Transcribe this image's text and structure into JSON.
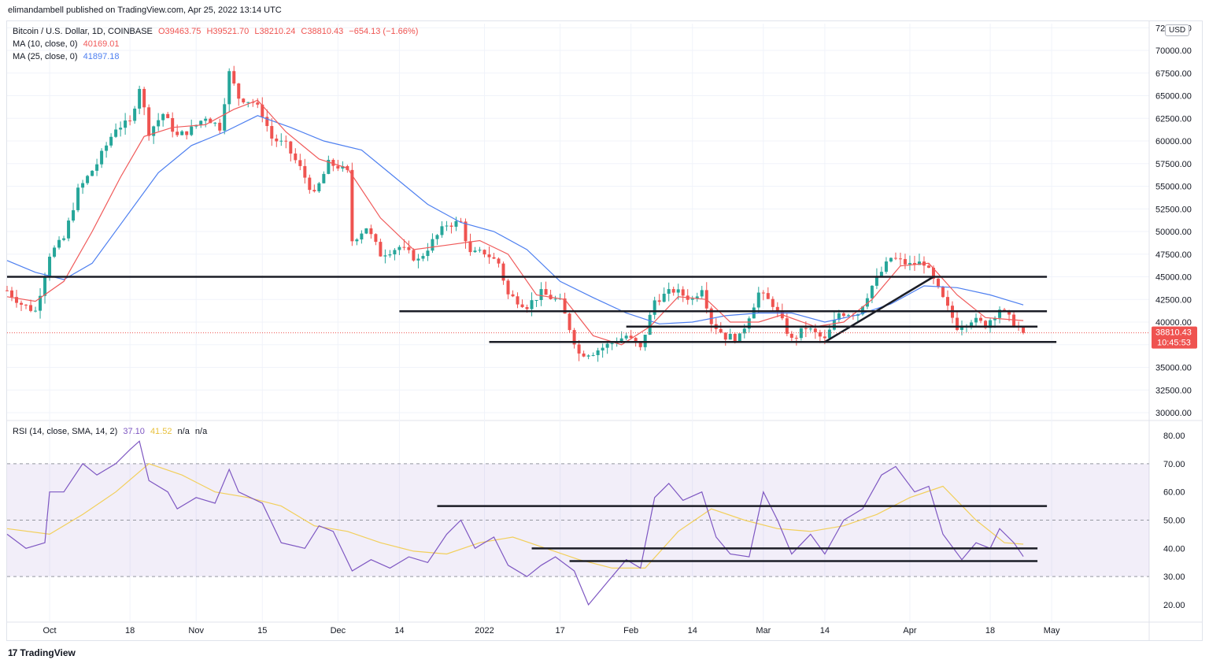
{
  "header": {
    "caption": "elimandambell published on TradingView.com, Apr 25, 2022 13:14 UTC"
  },
  "legend": {
    "symbol": "Bitcoin / U.S. Dollar, 1D, COINBASE",
    "o": "O39463.75",
    "h": "H39521.70",
    "l": "L38210.24",
    "c": "C38810.43",
    "chg": "−654.13 (−1.66%)",
    "ma10_label": "MA (10, close, 0)",
    "ma10_value": "40169.01",
    "ma25_label": "MA (25, close, 0)",
    "ma25_value": "41897.18",
    "rsi_label": "RSI (14, close, SMA, 14, 2)",
    "rsi_value": "37.10",
    "rsi_ma_value": "41.52",
    "na1": "n/a",
    "na2": "n/a"
  },
  "currency_badge": "USD",
  "price_tag": {
    "price": "38810.43",
    "countdown": "10:45:53"
  },
  "footer": {
    "brand": "TradingView"
  },
  "colors": {
    "up": "#26a69a",
    "down": "#ef5350",
    "ma10": "#f05a5a",
    "ma25": "#4d7ff0",
    "rsi": "#7e57c2",
    "rsi_ma": "#f2cf5b",
    "level": "#1b1d26"
  },
  "chart_data": [
    {
      "type": "candlestick",
      "title": "Bitcoin / U.S. Dollar, 1D, COINBASE",
      "ylim": [
        29000,
        72500
      ],
      "y_ticks": [
        "30000.00",
        "32500.00",
        "35000.00",
        "37500.00",
        "40000.00",
        "42500.00",
        "45000.00",
        "47500.00",
        "50000.00",
        "52500.00",
        "55000.00",
        "57500.00",
        "60000.00",
        "62500.00",
        "65000.00",
        "67500.00",
        "70000.00",
        "72500.00"
      ],
      "x_ticks": [
        "Oct",
        "18",
        "Nov",
        "15",
        "Dec",
        "14",
        "2022",
        "17",
        "Feb",
        "14",
        "Mar",
        "14",
        "Apr",
        "18",
        "May"
      ],
      "close_path": [
        [
          "2021-09-22",
          43500
        ],
        [
          "2021-09-25",
          42000
        ],
        [
          "2021-09-28",
          41200
        ],
        [
          "2021-10-01",
          47500
        ],
        [
          "2021-10-04",
          49200
        ],
        [
          "2021-10-07",
          54500
        ],
        [
          "2021-10-11",
          57500
        ],
        [
          "2021-10-15",
          61500
        ],
        [
          "2021-10-18",
          62000
        ],
        [
          "2021-10-20",
          66000
        ],
        [
          "2021-10-22",
          61000
        ],
        [
          "2021-10-25",
          63000
        ],
        [
          "2021-10-28",
          60500
        ],
        [
          "2021-10-31",
          61300
        ],
        [
          "2021-11-03",
          62700
        ],
        [
          "2021-11-06",
          61500
        ],
        [
          "2021-11-08",
          67500
        ],
        [
          "2021-11-10",
          64800
        ],
        [
          "2021-11-13",
          64300
        ],
        [
          "2021-11-15",
          63000
        ],
        [
          "2021-11-17",
          60300
        ],
        [
          "2021-11-20",
          59500
        ],
        [
          "2021-11-23",
          57000
        ],
        [
          "2021-11-26",
          54000
        ],
        [
          "2021-11-29",
          57500
        ],
        [
          "2021-12-01",
          57200
        ],
        [
          "2021-12-03",
          56500
        ],
        [
          "2021-12-04",
          49000
        ],
        [
          "2021-12-07",
          50500
        ],
        [
          "2021-12-10",
          47500
        ],
        [
          "2021-12-14",
          48300
        ],
        [
          "2021-12-18",
          46800
        ],
        [
          "2021-12-21",
          48900
        ],
        [
          "2021-12-24",
          50800
        ],
        [
          "2021-12-27",
          51000
        ],
        [
          "2021-12-29",
          47500
        ],
        [
          "2022-01-01",
          47700
        ],
        [
          "2022-01-04",
          46500
        ],
        [
          "2022-01-06",
          43000
        ],
        [
          "2022-01-10",
          41800
        ],
        [
          "2022-01-13",
          43200
        ],
        [
          "2022-01-17",
          42200
        ],
        [
          "2022-01-21",
          36500
        ],
        [
          "2022-01-24",
          36700
        ],
        [
          "2022-01-28",
          37700
        ],
        [
          "2022-01-31",
          38500
        ],
        [
          "2022-02-03",
          37000
        ],
        [
          "2022-02-06",
          42400
        ],
        [
          "2022-02-10",
          43500
        ],
        [
          "2022-02-14",
          42500
        ],
        [
          "2022-02-16",
          43900
        ],
        [
          "2022-02-18",
          40000
        ],
        [
          "2022-02-21",
          38400
        ],
        [
          "2022-02-24",
          38300
        ],
        [
          "2022-02-28",
          43200
        ],
        [
          "2022-03-03",
          42000
        ],
        [
          "2022-03-07",
          38000
        ],
        [
          "2022-03-10",
          39400
        ],
        [
          "2022-03-14",
          38000
        ],
        [
          "2022-03-17",
          41000
        ],
        [
          "2022-03-21",
          41000
        ],
        [
          "2022-03-24",
          44000
        ],
        [
          "2022-03-28",
          47100
        ],
        [
          "2022-04-01",
          46300
        ],
        [
          "2022-04-04",
          46600
        ],
        [
          "2022-04-07",
          43500
        ],
        [
          "2022-04-11",
          39500
        ],
        [
          "2022-04-14",
          40300
        ],
        [
          "2022-04-17",
          39700
        ],
        [
          "2022-04-20",
          41500
        ],
        [
          "2022-04-22",
          40400
        ],
        [
          "2022-04-25",
          38810
        ]
      ],
      "ma10": [
        [
          "2021-09-22",
          42800
        ],
        [
          "2021-09-28",
          42300
        ],
        [
          "2021-10-04",
          44500
        ],
        [
          "2021-10-10",
          50000
        ],
        [
          "2021-10-16",
          56000
        ],
        [
          "2021-10-21",
          60500
        ],
        [
          "2021-10-27",
          61500
        ],
        [
          "2021-11-03",
          61800
        ],
        [
          "2021-11-09",
          63500
        ],
        [
          "2021-11-14",
          64500
        ],
        [
          "2021-11-20",
          61000
        ],
        [
          "2021-11-27",
          58000
        ],
        [
          "2021-12-03",
          57000
        ],
        [
          "2021-12-10",
          51500
        ],
        [
          "2021-12-17",
          48000
        ],
        [
          "2021-12-24",
          48500
        ],
        [
          "2021-12-31",
          49000
        ],
        [
          "2022-01-06",
          47500
        ],
        [
          "2022-01-12",
          43000
        ],
        [
          "2022-01-18",
          42500
        ],
        [
          "2022-01-24",
          38500
        ],
        [
          "2022-01-30",
          37500
        ],
        [
          "2022-02-05",
          39500
        ],
        [
          "2022-02-11",
          42800
        ],
        [
          "2022-02-17",
          42500
        ],
        [
          "2022-02-22",
          40000
        ],
        [
          "2022-02-28",
          40000
        ],
        [
          "2022-03-05",
          40800
        ],
        [
          "2022-03-12",
          39500
        ],
        [
          "2022-03-18",
          40000
        ],
        [
          "2022-03-24",
          42500
        ],
        [
          "2022-03-30",
          46200
        ],
        [
          "2022-04-05",
          46500
        ],
        [
          "2022-04-11",
          43000
        ],
        [
          "2022-04-17",
          40500
        ],
        [
          "2022-04-25",
          40169
        ]
      ],
      "ma25": [
        [
          "2021-09-22",
          46800
        ],
        [
          "2021-09-28",
          45500
        ],
        [
          "2021-10-04",
          44700
        ],
        [
          "2021-10-10",
          46500
        ],
        [
          "2021-10-17",
          51500
        ],
        [
          "2021-10-24",
          56500
        ],
        [
          "2021-10-31",
          59500
        ],
        [
          "2021-11-07",
          61000
        ],
        [
          "2021-11-14",
          62800
        ],
        [
          "2021-11-21",
          61500
        ],
        [
          "2021-11-28",
          60000
        ],
        [
          "2021-12-06",
          59000
        ],
        [
          "2021-12-13",
          56000
        ],
        [
          "2021-12-20",
          53000
        ],
        [
          "2021-12-27",
          51000
        ],
        [
          "2022-01-03",
          50000
        ],
        [
          "2022-01-10",
          48000
        ],
        [
          "2022-01-17",
          44500
        ],
        [
          "2022-01-24",
          42700
        ],
        [
          "2022-01-31",
          41000
        ],
        [
          "2022-02-07",
          39800
        ],
        [
          "2022-02-14",
          40000
        ],
        [
          "2022-02-21",
          40700
        ],
        [
          "2022-02-28",
          41000
        ],
        [
          "2022-03-07",
          41000
        ],
        [
          "2022-03-14",
          40000
        ],
        [
          "2022-03-21",
          40800
        ],
        [
          "2022-03-28",
          42000
        ],
        [
          "2022-04-04",
          44000
        ],
        [
          "2022-04-11",
          43800
        ],
        [
          "2022-04-18",
          43000
        ],
        [
          "2022-04-25",
          41897
        ]
      ],
      "levels": [
        {
          "from": "2021-09-22",
          "to": "2022-04-30",
          "y": 45000
        },
        {
          "from": "2021-12-14",
          "to": "2022-04-30",
          "y": 41200
        },
        {
          "from": "2022-01-31",
          "to": "2022-04-28",
          "y": 39500
        },
        {
          "from": "2022-01-02",
          "to": "2022-05-02",
          "y": 37800
        }
      ],
      "trendline": {
        "from": [
          "2022-03-14",
          37800
        ],
        "to": [
          "2022-04-06",
          45000
        ]
      },
      "last_close": 38810.43
    },
    {
      "type": "line",
      "title": "RSI (14, close, SMA, 14, 2)",
      "ylim": [
        15,
        85
      ],
      "y_ticks": [
        "20.00",
        "30.00",
        "40.00",
        "50.00",
        "60.00",
        "70.00",
        "80.00"
      ],
      "band": [
        30,
        70
      ],
      "midline": 50,
      "rsi": [
        [
          "2021-09-22",
          45
        ],
        [
          "2021-09-26",
          40
        ],
        [
          "2021-09-30",
          42
        ],
        [
          "2021-10-01",
          60
        ],
        [
          "2021-10-04",
          60
        ],
        [
          "2021-10-08",
          70
        ],
        [
          "2021-10-11",
          66
        ],
        [
          "2021-10-15",
          70
        ],
        [
          "2021-10-18",
          75
        ],
        [
          "2021-10-20",
          78
        ],
        [
          "2021-10-22",
          64
        ],
        [
          "2021-10-26",
          60
        ],
        [
          "2021-10-28",
          54
        ],
        [
          "2021-11-01",
          58
        ],
        [
          "2021-11-05",
          56
        ],
        [
          "2021-11-08",
          68
        ],
        [
          "2021-11-10",
          60
        ],
        [
          "2021-11-15",
          56
        ],
        [
          "2021-11-19",
          42
        ],
        [
          "2021-11-24",
          40
        ],
        [
          "2021-11-27",
          48
        ],
        [
          "2021-11-30",
          46
        ],
        [
          "2021-12-04",
          32
        ],
        [
          "2021-12-08",
          36
        ],
        [
          "2021-12-12",
          33
        ],
        [
          "2021-12-16",
          37
        ],
        [
          "2021-12-20",
          35
        ],
        [
          "2021-12-24",
          45
        ],
        [
          "2021-12-27",
          50
        ],
        [
          "2021-12-30",
          40
        ],
        [
          "2022-01-03",
          44
        ],
        [
          "2022-01-06",
          34
        ],
        [
          "2022-01-10",
          30
        ],
        [
          "2022-01-13",
          34
        ],
        [
          "2022-01-16",
          37
        ],
        [
          "2022-01-20",
          32
        ],
        [
          "2022-01-23",
          20
        ],
        [
          "2022-01-27",
          28
        ],
        [
          "2022-01-31",
          36
        ],
        [
          "2022-02-03",
          33
        ],
        [
          "2022-02-06",
          58
        ],
        [
          "2022-02-09",
          63
        ],
        [
          "2022-02-12",
          57
        ],
        [
          "2022-02-16",
          60
        ],
        [
          "2022-02-19",
          44
        ],
        [
          "2022-02-22",
          38
        ],
        [
          "2022-02-26",
          37
        ],
        [
          "2022-03-01",
          60
        ],
        [
          "2022-03-04",
          50
        ],
        [
          "2022-03-07",
          38
        ],
        [
          "2022-03-11",
          45
        ],
        [
          "2022-03-14",
          38
        ],
        [
          "2022-03-18",
          50
        ],
        [
          "2022-03-22",
          54
        ],
        [
          "2022-03-26",
          66
        ],
        [
          "2022-03-29",
          69
        ],
        [
          "2022-04-02",
          60
        ],
        [
          "2022-04-05",
          62
        ],
        [
          "2022-04-08",
          45
        ],
        [
          "2022-04-12",
          36
        ],
        [
          "2022-04-15",
          42
        ],
        [
          "2022-04-18",
          40
        ],
        [
          "2022-04-20",
          47
        ],
        [
          "2022-04-23",
          42
        ],
        [
          "2022-04-25",
          37.1
        ]
      ],
      "rsi_ma": [
        [
          "2021-09-22",
          47
        ],
        [
          "2021-10-01",
          45
        ],
        [
          "2021-10-08",
          52
        ],
        [
          "2021-10-15",
          60
        ],
        [
          "2021-10-22",
          70
        ],
        [
          "2021-10-29",
          66
        ],
        [
          "2021-11-05",
          60
        ],
        [
          "2021-11-12",
          58
        ],
        [
          "2021-11-19",
          55
        ],
        [
          "2021-11-26",
          48
        ],
        [
          "2021-12-03",
          46
        ],
        [
          "2021-12-10",
          42
        ],
        [
          "2021-12-17",
          39
        ],
        [
          "2021-12-24",
          38
        ],
        [
          "2021-12-31",
          42
        ],
        [
          "2022-01-07",
          44
        ],
        [
          "2022-01-14",
          40
        ],
        [
          "2022-01-21",
          36
        ],
        [
          "2022-01-28",
          33
        ],
        [
          "2022-02-04",
          33
        ],
        [
          "2022-02-11",
          46
        ],
        [
          "2022-02-18",
          54
        ],
        [
          "2022-02-25",
          50
        ],
        [
          "2022-03-04",
          47
        ],
        [
          "2022-03-11",
          46
        ],
        [
          "2022-03-18",
          48
        ],
        [
          "2022-03-25",
          52
        ],
        [
          "2022-04-01",
          58
        ],
        [
          "2022-04-08",
          62
        ],
        [
          "2022-04-15",
          50
        ],
        [
          "2022-04-21",
          42
        ],
        [
          "2022-04-25",
          41.5
        ]
      ],
      "levels": [
        {
          "from": "2021-12-22",
          "to": "2022-04-30",
          "y": 55
        },
        {
          "from": "2022-01-11",
          "to": "2022-04-28",
          "y": 40
        },
        {
          "from": "2022-01-19",
          "to": "2022-04-28",
          "y": 35.5
        }
      ]
    }
  ]
}
